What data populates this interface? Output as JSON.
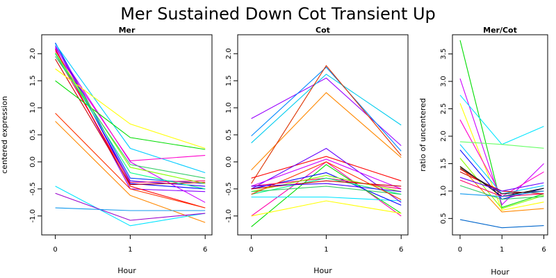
{
  "title": "Mer Sustained Down Cot Transient Up",
  "chart_data": [
    {
      "type": "line",
      "title": "Mer",
      "xlabel": "Hour",
      "ylabel": "centered expression",
      "x": [
        "0",
        "1",
        "6"
      ],
      "ylim": [
        -1.35,
        2.35
      ],
      "yticks": [
        -1.0,
        -0.5,
        0.0,
        0.5,
        1.0,
        1.5,
        2.0
      ],
      "ytick_labels": [
        "-1.0",
        "-0.5",
        "0.0",
        "0.5",
        "1.0",
        "1.5",
        "2.0"
      ],
      "series": [
        {
          "color": "#0000ff",
          "values": [
            2.2,
            -0.4,
            -0.5
          ]
        },
        {
          "color": "#4400ff",
          "values": [
            2.15,
            -0.35,
            -0.45
          ]
        },
        {
          "color": "#0044ff",
          "values": [
            2.2,
            -0.3,
            -0.4
          ]
        },
        {
          "color": "#00ccff",
          "values": [
            2.18,
            0.25,
            -0.2
          ]
        },
        {
          "color": "#8800ff",
          "values": [
            2.1,
            -0.5,
            -0.55
          ]
        },
        {
          "color": "#cc00ff",
          "values": [
            2.12,
            0.0,
            -0.75
          ]
        },
        {
          "color": "#ff00cc",
          "values": [
            2.05,
            0.02,
            0.12
          ]
        },
        {
          "color": "#ff0066",
          "values": [
            2.0,
            -0.38,
            -0.35
          ]
        },
        {
          "color": "#ff0000",
          "values": [
            2.08,
            -0.45,
            -0.85
          ]
        },
        {
          "color": "#cc0000",
          "values": [
            1.9,
            -0.42,
            -0.38
          ]
        },
        {
          "color": "#ffff00",
          "values": [
            1.72,
            0.7,
            0.25
          ]
        },
        {
          "color": "#00dd00",
          "values": [
            1.5,
            0.45,
            0.23
          ]
        },
        {
          "color": "#88ff00",
          "values": [
            2.02,
            -0.1,
            -0.4
          ]
        },
        {
          "color": "#00ff88",
          "values": [
            2.0,
            -0.2,
            -0.5
          ]
        },
        {
          "color": "#33cc66",
          "values": [
            1.95,
            -0.05,
            -0.3
          ]
        },
        {
          "color": "#ff3300",
          "values": [
            0.9,
            -0.5,
            -0.85
          ]
        },
        {
          "color": "#ff8800",
          "values": [
            0.75,
            -0.62,
            -1.12
          ]
        },
        {
          "color": "#00e5ff",
          "values": [
            -0.45,
            -1.18,
            -0.95
          ]
        },
        {
          "color": "#9900cc",
          "values": [
            -0.58,
            -1.08,
            -0.95
          ]
        },
        {
          "color": "#1199ee",
          "values": [
            -0.85,
            -0.9,
            -0.9
          ]
        }
      ]
    },
    {
      "type": "line",
      "title": "Cot",
      "xlabel": "Hour",
      "ylabel": "",
      "x": [
        "0",
        "1",
        "6"
      ],
      "ylim": [
        -1.35,
        2.35
      ],
      "yticks": [
        -1.0,
        -0.5,
        0.0,
        0.5,
        1.0,
        1.5,
        2.0
      ],
      "ytick_labels": [
        "-1.0",
        "-0.5",
        "0.0",
        "0.5",
        "1.0",
        "1.5",
        "2.0"
      ],
      "series": [
        {
          "color": "#9900ff",
          "values": [
            0.8,
            1.55,
            0.3
          ]
        },
        {
          "color": "#0088ff",
          "values": [
            0.48,
            1.75,
            0.2
          ]
        },
        {
          "color": "#00ccee",
          "values": [
            0.35,
            1.62,
            0.68
          ]
        },
        {
          "color": "#ff8800",
          "values": [
            -0.15,
            1.28,
            0.08
          ]
        },
        {
          "color": "#dd3300",
          "values": [
            -0.4,
            1.78,
            0.12
          ]
        },
        {
          "color": "#ff0000",
          "values": [
            -0.3,
            0.1,
            -0.35
          ]
        },
        {
          "color": "#ff00aa",
          "values": [
            -1.0,
            0.0,
            -1.0
          ]
        },
        {
          "color": "#00dd00",
          "values": [
            -1.2,
            -0.05,
            -0.95
          ]
        },
        {
          "color": "#ffff00",
          "values": [
            -1.0,
            -0.72,
            -0.95
          ]
        },
        {
          "color": "#00e5ff",
          "values": [
            -0.65,
            -0.65,
            -0.72
          ]
        },
        {
          "color": "#6600ff",
          "values": [
            -0.5,
            0.25,
            -0.75
          ]
        },
        {
          "color": "#cc00ff",
          "values": [
            -0.45,
            0.05,
            -0.5
          ]
        },
        {
          "color": "#0000ff",
          "values": [
            -0.5,
            -0.2,
            -0.8
          ]
        },
        {
          "color": "#ff0066",
          "values": [
            -0.45,
            -0.3,
            -0.5
          ]
        },
        {
          "color": "#88ff00",
          "values": [
            -0.55,
            -0.25,
            -0.55
          ]
        },
        {
          "color": "#00ff88",
          "values": [
            -0.6,
            -0.3,
            -0.6
          ]
        },
        {
          "color": "#cc0000",
          "values": [
            -0.5,
            -0.35,
            -0.45
          ]
        },
        {
          "color": "#4400ff",
          "values": [
            -0.45,
            -0.4,
            -0.55
          ]
        },
        {
          "color": "#33cc66",
          "values": [
            -0.55,
            -0.45,
            -0.6
          ]
        },
        {
          "color": "#ff3300",
          "values": [
            -0.6,
            0.0,
            -0.7
          ]
        }
      ]
    },
    {
      "type": "line",
      "title": "Mer/Cot",
      "xlabel": "Hour",
      "ylabel": "ratio of uncentered",
      "x": [
        "0",
        "1",
        "6"
      ],
      "ylim": [
        0.2,
        3.85
      ],
      "yticks": [
        0.5,
        1.0,
        1.5,
        2.0,
        2.5,
        3.0,
        3.5
      ],
      "ytick_labels": [
        "0.5",
        "1.0",
        "1.5",
        "2.0",
        "2.5",
        "3.0",
        "3.5"
      ],
      "series": [
        {
          "color": "#00dd00",
          "values": [
            3.75,
            0.7,
            0.95
          ]
        },
        {
          "color": "#cc00ff",
          "values": [
            3.05,
            0.75,
            1.5
          ]
        },
        {
          "color": "#00e5ff",
          "values": [
            2.75,
            1.85,
            2.18
          ]
        },
        {
          "color": "#ffff00",
          "values": [
            2.6,
            0.65,
            0.8
          ]
        },
        {
          "color": "#ff00cc",
          "values": [
            2.3,
            0.9,
            1.35
          ]
        },
        {
          "color": "#00ccff",
          "values": [
            1.85,
            0.95,
            1.1
          ]
        },
        {
          "color": "#0000ff",
          "values": [
            1.75,
            0.85,
            1.05
          ]
        },
        {
          "color": "#88ff00",
          "values": [
            1.6,
            0.68,
            0.92
          ]
        },
        {
          "color": "#ff8800",
          "values": [
            1.45,
            0.62,
            0.68
          ]
        },
        {
          "color": "#ff0000",
          "values": [
            1.4,
            0.95,
            1.0
          ]
        },
        {
          "color": "#cc0000",
          "values": [
            1.35,
            1.0,
            0.95
          ]
        },
        {
          "color": "#000000",
          "values": [
            1.45,
            0.9,
            1.05
          ]
        },
        {
          "color": "#333333",
          "values": [
            1.42,
            0.95,
            1.0
          ]
        },
        {
          "color": "#6600ff",
          "values": [
            1.25,
            1.0,
            1.15
          ]
        },
        {
          "color": "#ff0066",
          "values": [
            1.2,
            0.9,
            0.95
          ]
        },
        {
          "color": "#33cc66",
          "values": [
            1.1,
            0.85,
            0.9
          ]
        },
        {
          "color": "#66ff66",
          "values": [
            1.9,
            1.85,
            1.78
          ]
        },
        {
          "color": "#1199ee",
          "values": [
            0.95,
            0.9,
            1.0
          ]
        },
        {
          "color": "#0066cc",
          "values": [
            0.48,
            0.33,
            0.37
          ]
        }
      ]
    }
  ]
}
